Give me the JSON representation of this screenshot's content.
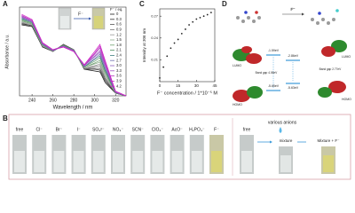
{
  "panel_labels": [
    "A",
    "B",
    "C",
    "D"
  ],
  "chart_data": [
    {
      "type": "line",
      "xlabel": "Wavelength / nm",
      "ylabel": "Absorbance / a.u.",
      "legend_title": "F⁻ / eq.",
      "x": [
        230,
        240,
        250,
        260,
        270,
        280,
        290,
        300,
        305,
        310,
        320,
        330
      ],
      "xlim": [
        228,
        330
      ],
      "xticks": [
        240,
        260,
        280,
        300,
        320
      ],
      "ylim": [
        0,
        1
      ],
      "series": [
        {
          "name": "0",
          "color": "#1a1a1a",
          "values": [
            0.8,
            0.78,
            0.55,
            0.5,
            0.58,
            0.52,
            0.3,
            0.28,
            0.27,
            0.15,
            0.03,
            0
          ]
        },
        {
          "name": "0.3",
          "color": "#333333",
          "values": [
            0.81,
            0.79,
            0.55,
            0.5,
            0.58,
            0.52,
            0.3,
            0.3,
            0.29,
            0.17,
            0.03,
            0
          ]
        },
        {
          "name": "0.6",
          "color": "#555555",
          "values": [
            0.82,
            0.79,
            0.56,
            0.5,
            0.58,
            0.52,
            0.31,
            0.31,
            0.31,
            0.19,
            0.03,
            0
          ]
        },
        {
          "name": "0.9",
          "color": "#777777",
          "values": [
            0.83,
            0.8,
            0.56,
            0.5,
            0.57,
            0.52,
            0.31,
            0.33,
            0.34,
            0.2,
            0.03,
            0
          ]
        },
        {
          "name": "1.2",
          "color": "#999999",
          "values": [
            0.83,
            0.8,
            0.56,
            0.51,
            0.57,
            0.51,
            0.31,
            0.34,
            0.36,
            0.22,
            0.04,
            0
          ]
        },
        {
          "name": "1.5",
          "color": "#8fae8f",
          "values": [
            0.84,
            0.81,
            0.57,
            0.51,
            0.57,
            0.51,
            0.32,
            0.36,
            0.38,
            0.24,
            0.04,
            0
          ]
        },
        {
          "name": "1.8",
          "color": "#6f9f6f",
          "values": [
            0.85,
            0.81,
            0.57,
            0.51,
            0.57,
            0.51,
            0.32,
            0.37,
            0.4,
            0.26,
            0.04,
            0
          ]
        },
        {
          "name": "2.1",
          "color": "#4f8f5f",
          "values": [
            0.86,
            0.82,
            0.58,
            0.51,
            0.57,
            0.51,
            0.33,
            0.39,
            0.43,
            0.28,
            0.04,
            0
          ]
        },
        {
          "name": "2.4",
          "color": "#3f7f7f",
          "values": [
            0.87,
            0.83,
            0.58,
            0.51,
            0.56,
            0.51,
            0.33,
            0.41,
            0.45,
            0.29,
            0.04,
            0
          ]
        },
        {
          "name": "2.7",
          "color": "#6f6faf",
          "values": [
            0.88,
            0.83,
            0.58,
            0.51,
            0.56,
            0.51,
            0.33,
            0.42,
            0.47,
            0.31,
            0.04,
            0
          ]
        },
        {
          "name": "3.0",
          "color": "#8f5fbf",
          "values": [
            0.89,
            0.84,
            0.59,
            0.51,
            0.56,
            0.51,
            0.34,
            0.44,
            0.49,
            0.33,
            0.04,
            0
          ]
        },
        {
          "name": "3.3",
          "color": "#a050c0",
          "values": [
            0.89,
            0.84,
            0.59,
            0.52,
            0.56,
            0.5,
            0.34,
            0.45,
            0.51,
            0.35,
            0.05,
            0
          ]
        },
        {
          "name": "3.6",
          "color": "#b040c0",
          "values": [
            0.9,
            0.85,
            0.59,
            0.52,
            0.55,
            0.5,
            0.34,
            0.47,
            0.54,
            0.36,
            0.05,
            0
          ]
        },
        {
          "name": "3.9",
          "color": "#c030c0",
          "values": [
            0.91,
            0.85,
            0.6,
            0.52,
            0.55,
            0.5,
            0.35,
            0.48,
            0.56,
            0.38,
            0.05,
            0
          ]
        },
        {
          "name": "4.2",
          "color": "#d020c8",
          "values": [
            0.92,
            0.86,
            0.6,
            0.52,
            0.55,
            0.5,
            0.35,
            0.5,
            0.58,
            0.4,
            0.05,
            0
          ]
        }
      ]
    },
    {
      "type": "scatter",
      "xlabel": "F⁻ concentration / 1*10⁻⁵ M",
      "ylabel": "Intensity at 306 nm",
      "color": "#222222",
      "x": [
        0,
        3,
        6,
        9,
        12,
        15,
        18,
        21,
        24,
        27,
        30,
        33,
        36,
        39,
        42
      ],
      "values": [
        0.185,
        0.2,
        0.215,
        0.226,
        0.233,
        0.238,
        0.246,
        0.252,
        0.258,
        0.262,
        0.266,
        0.268,
        0.27,
        0.272,
        0.275
      ],
      "xlim": [
        0,
        45
      ],
      "xticks": [
        0,
        15,
        30,
        45
      ],
      "ylim": [
        0.18,
        0.28
      ],
      "yticks": [
        0.21,
        0.24,
        0.27
      ]
    }
  ],
  "panel_a_inset": {
    "arrow_label": "F⁻"
  },
  "panel_b": {
    "anions": [
      "free",
      "Cl⁻",
      "Br⁻",
      "I⁻",
      "SO₄²⁻",
      "NO₃⁻",
      "SCN⁻",
      "ClO₄⁻",
      "AcO⁻",
      "H₂PO₄⁻",
      "F⁻"
    ],
    "various_label": "various anions",
    "right_free": "free",
    "mixture_label": "mixture",
    "mixture_f_label": "Mixture + F⁻"
  },
  "panel_d": {
    "arrow_label": "F⁻",
    "left": {
      "lumo": "LUMO",
      "homo": "HOMO",
      "lumo_energy": "-1.59eV",
      "homo_energy": "-5.65eV",
      "gap": "Band gap 4.06eV"
    },
    "right": {
      "lumo": "LUMO",
      "homo": "HOMO",
      "lumo_energy": "-2.86eV",
      "homo_energy": "-5.63eV",
      "gap": "Band gap 2.77eV"
    }
  }
}
